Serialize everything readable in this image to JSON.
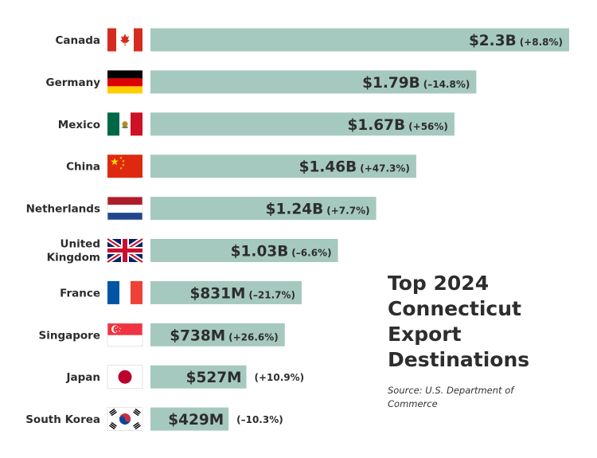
{
  "title": [
    "Top 2024",
    "Connecticut",
    "Export",
    "Destinations"
  ],
  "source": "Source: U.S. Department of Commerce",
  "colors": {
    "bar": "#a6c9bf",
    "text": "#2d2d2d"
  },
  "chart_data": {
    "type": "bar",
    "orientation": "horizontal",
    "categories": [
      [
        "Canada"
      ],
      [
        "Germany"
      ],
      [
        "Mexico"
      ],
      [
        "China"
      ],
      [
        "Netherlands"
      ],
      [
        "United",
        "Kingdom"
      ],
      [
        "France"
      ],
      [
        "Singapore"
      ],
      [
        "Japan"
      ],
      [
        "South Korea"
      ]
    ],
    "values": [
      2.3,
      1.79,
      1.67,
      1.46,
      1.24,
      1.03,
      0.831,
      0.738,
      0.527,
      0.429
    ],
    "units": "billion USD",
    "value_labels": [
      "$2.3B",
      "$1.79B",
      "$1.67B",
      "$1.46B",
      "$1.24B",
      "$1.03B",
      "$831M",
      "$738M",
      "$527M",
      "$429M"
    ],
    "change_labels": [
      "(+8.8%)",
      "(–14.8%)",
      "(+56%)",
      "(+47.3%)",
      "(+7.7%)",
      "(–6.6%)",
      "(–21.7%)",
      "(+26.6%)",
      "(+10.9%)",
      "(–10.3%)"
    ],
    "flags": [
      "canada-flag-icon",
      "germany-flag-icon",
      "mexico-flag-icon",
      "china-flag-icon",
      "netherlands-flag-icon",
      "uk-flag-icon",
      "france-flag-icon",
      "singapore-flag-icon",
      "japan-flag-icon",
      "south-korea-flag-icon"
    ],
    "labels_outside": [
      false,
      false,
      false,
      false,
      false,
      false,
      false,
      false,
      true,
      true
    ],
    "xlim": [
      0,
      2.3
    ],
    "grid": false,
    "legend": "none"
  }
}
